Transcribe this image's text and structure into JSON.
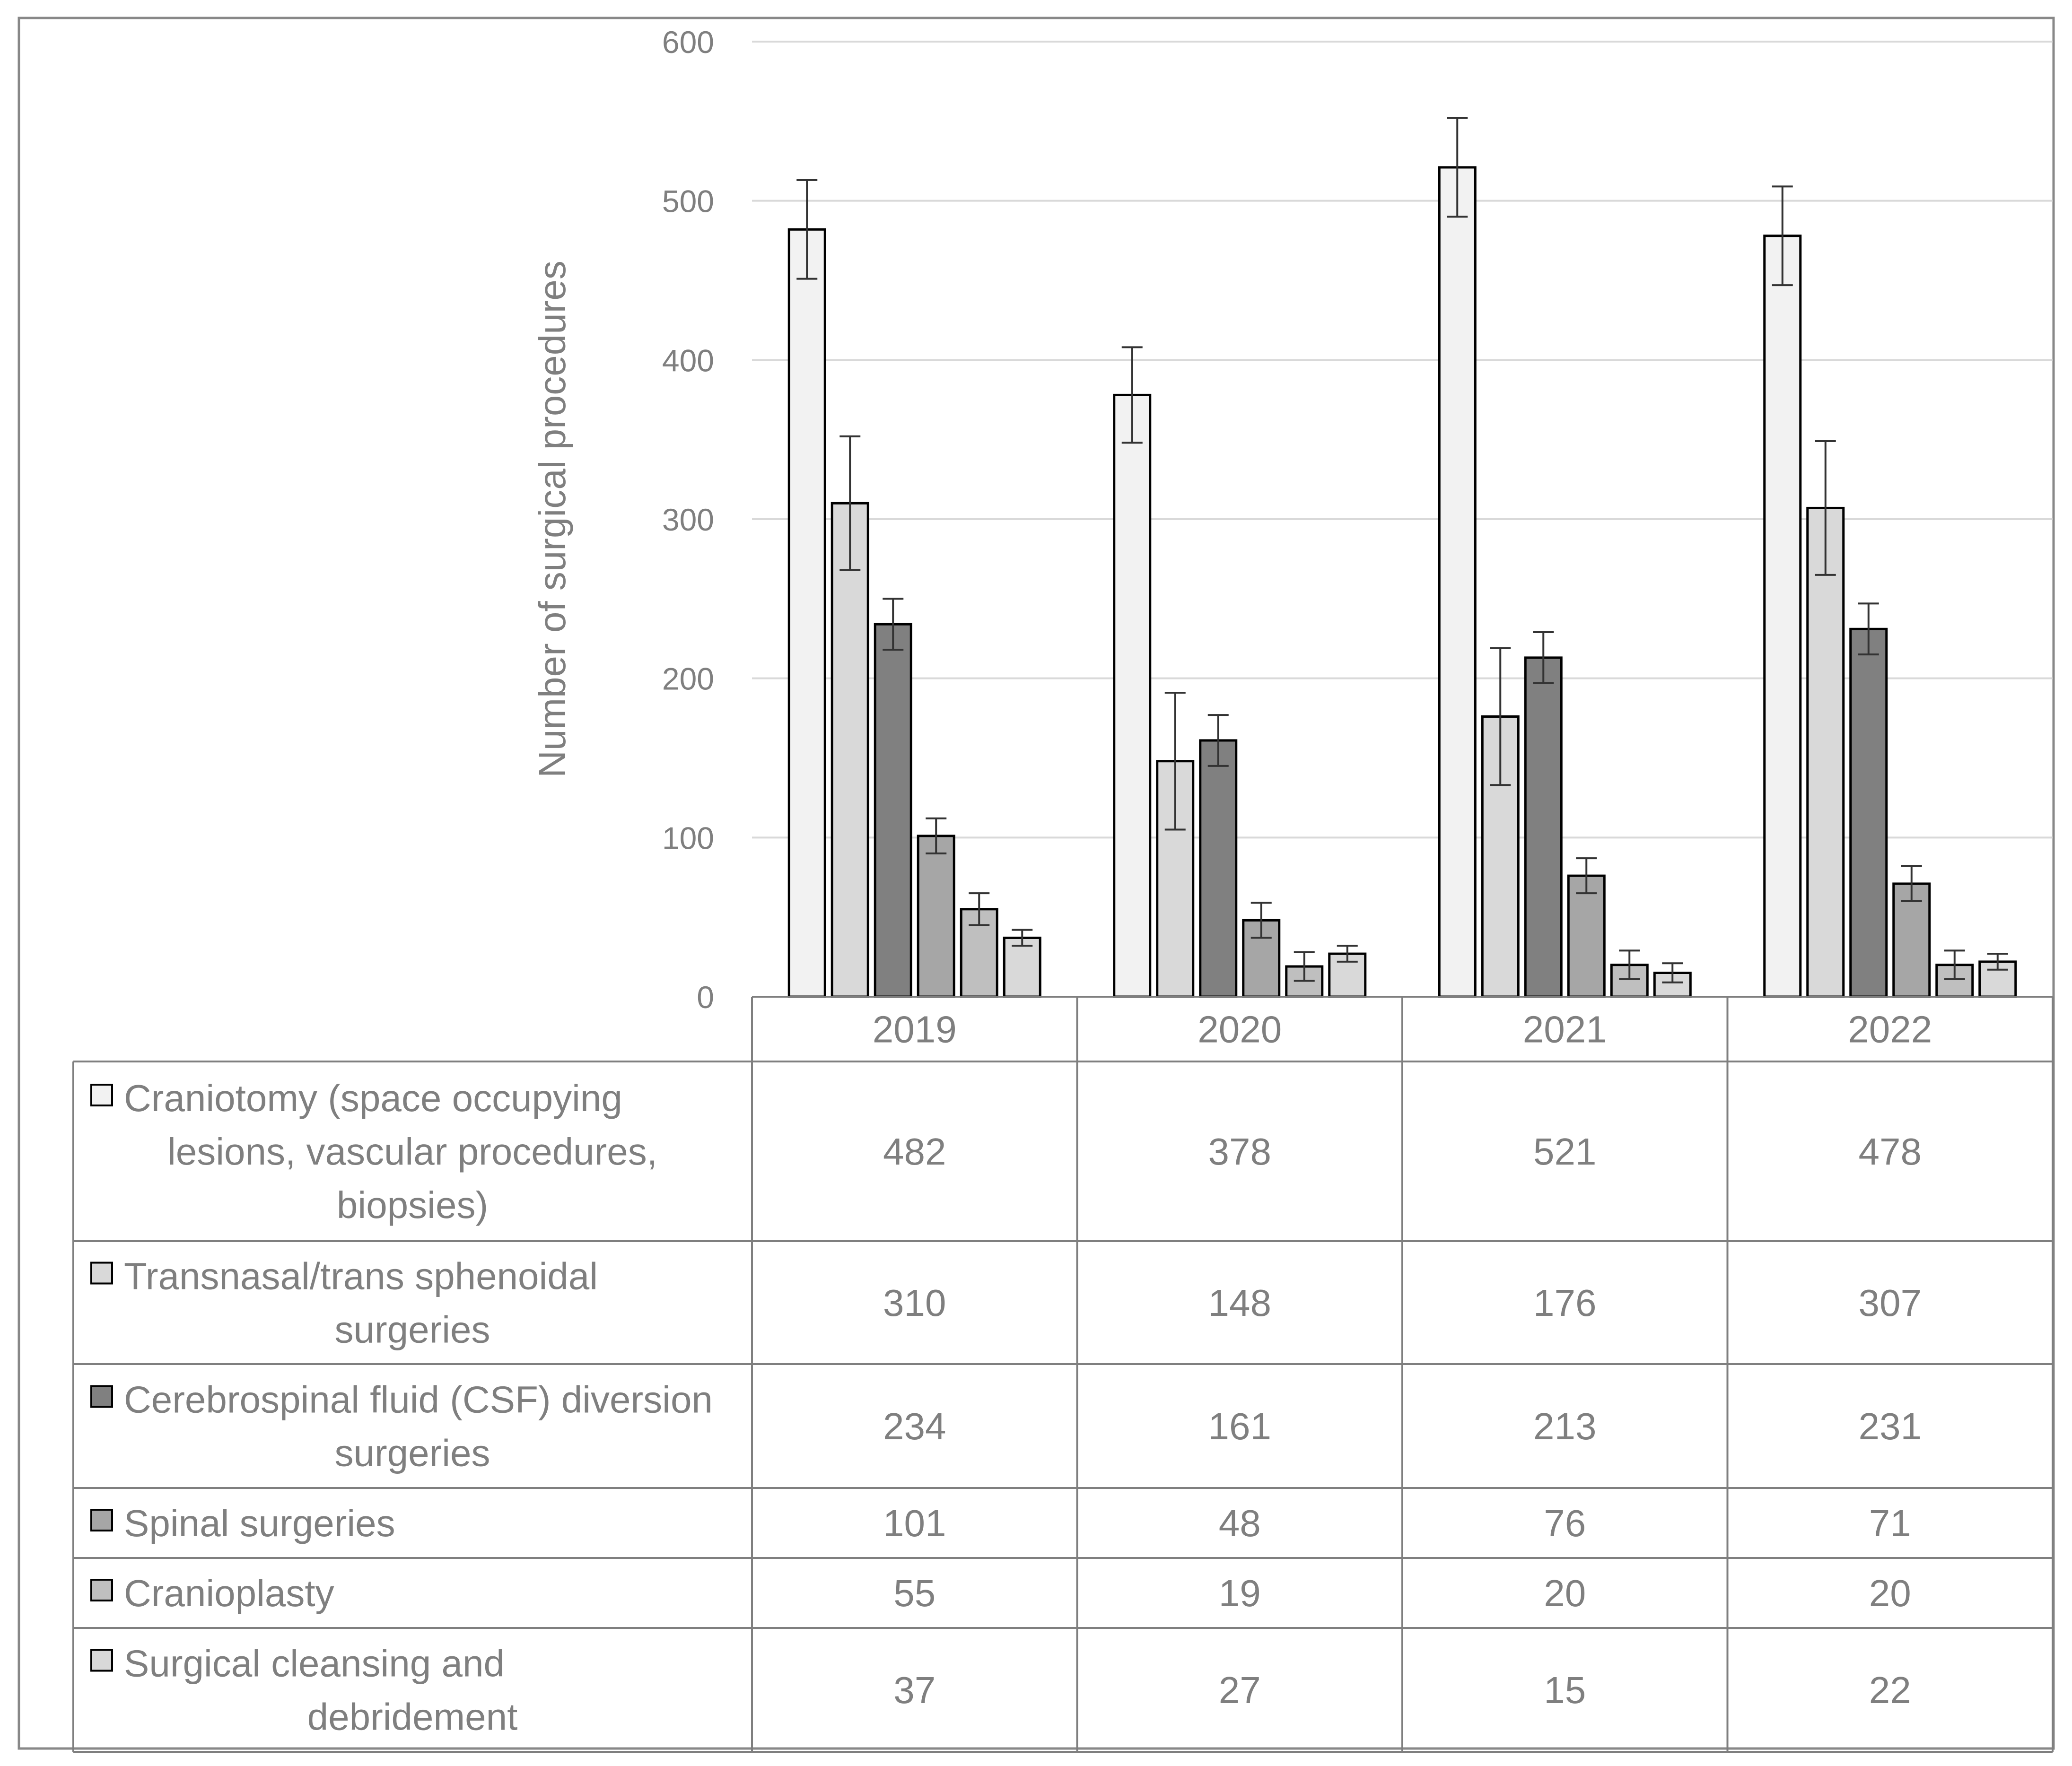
{
  "chart_data": {
    "type": "bar",
    "title": "",
    "xlabel": "",
    "ylabel": "Number of surgical procedures",
    "ylim": [
      0,
      600
    ],
    "yticks": [
      0,
      100,
      200,
      300,
      400,
      500,
      600
    ],
    "grid": true,
    "legend": "data-table",
    "categories": [
      "2019",
      "2020",
      "2021",
      "2022"
    ],
    "series": [
      {
        "name": "Craniotomy (space occupying lesions, vascular procedures, biopsies)",
        "label_lines": [
          "Craniotomy (space occupying",
          "lesions, vascular procedures,",
          "biopsies)"
        ],
        "color": "#f2f2f2",
        "values": [
          482,
          378,
          521,
          478
        ],
        "errors": [
          31,
          30,
          31,
          31
        ]
      },
      {
        "name": "Transnasal/trans sphenoidal surgeries",
        "label_lines": [
          "Transnasal/trans sphenoidal",
          "surgeries"
        ],
        "color": "#d9d9d9",
        "values": [
          310,
          148,
          176,
          307
        ],
        "errors": [
          42,
          43,
          43,
          42
        ]
      },
      {
        "name": "Cerebrospinal fluid (CSF) diversion surgeries",
        "label_lines": [
          "Cerebrospinal fluid (CSF) diversion",
          "surgeries"
        ],
        "color": "#808080",
        "values": [
          234,
          161,
          213,
          231
        ],
        "errors": [
          16,
          16,
          16,
          16
        ]
      },
      {
        "name": "Spinal surgeries",
        "label_lines": [
          "Spinal surgeries"
        ],
        "color": "#a6a6a6",
        "values": [
          101,
          48,
          76,
          71
        ],
        "errors": [
          11,
          11,
          11,
          11
        ]
      },
      {
        "name": "Cranioplasty",
        "label_lines": [
          "Cranioplasty"
        ],
        "color": "#bfbfbf",
        "values": [
          55,
          19,
          20,
          20
        ],
        "errors": [
          10,
          9,
          9,
          9
        ]
      },
      {
        "name": "Surgical cleansing and debridement",
        "label_lines": [
          "Surgical cleansing and",
          "debridement"
        ],
        "color": "#d9d9d9",
        "values": [
          37,
          27,
          15,
          22
        ],
        "errors": [
          5,
          5,
          6,
          5
        ]
      }
    ]
  }
}
